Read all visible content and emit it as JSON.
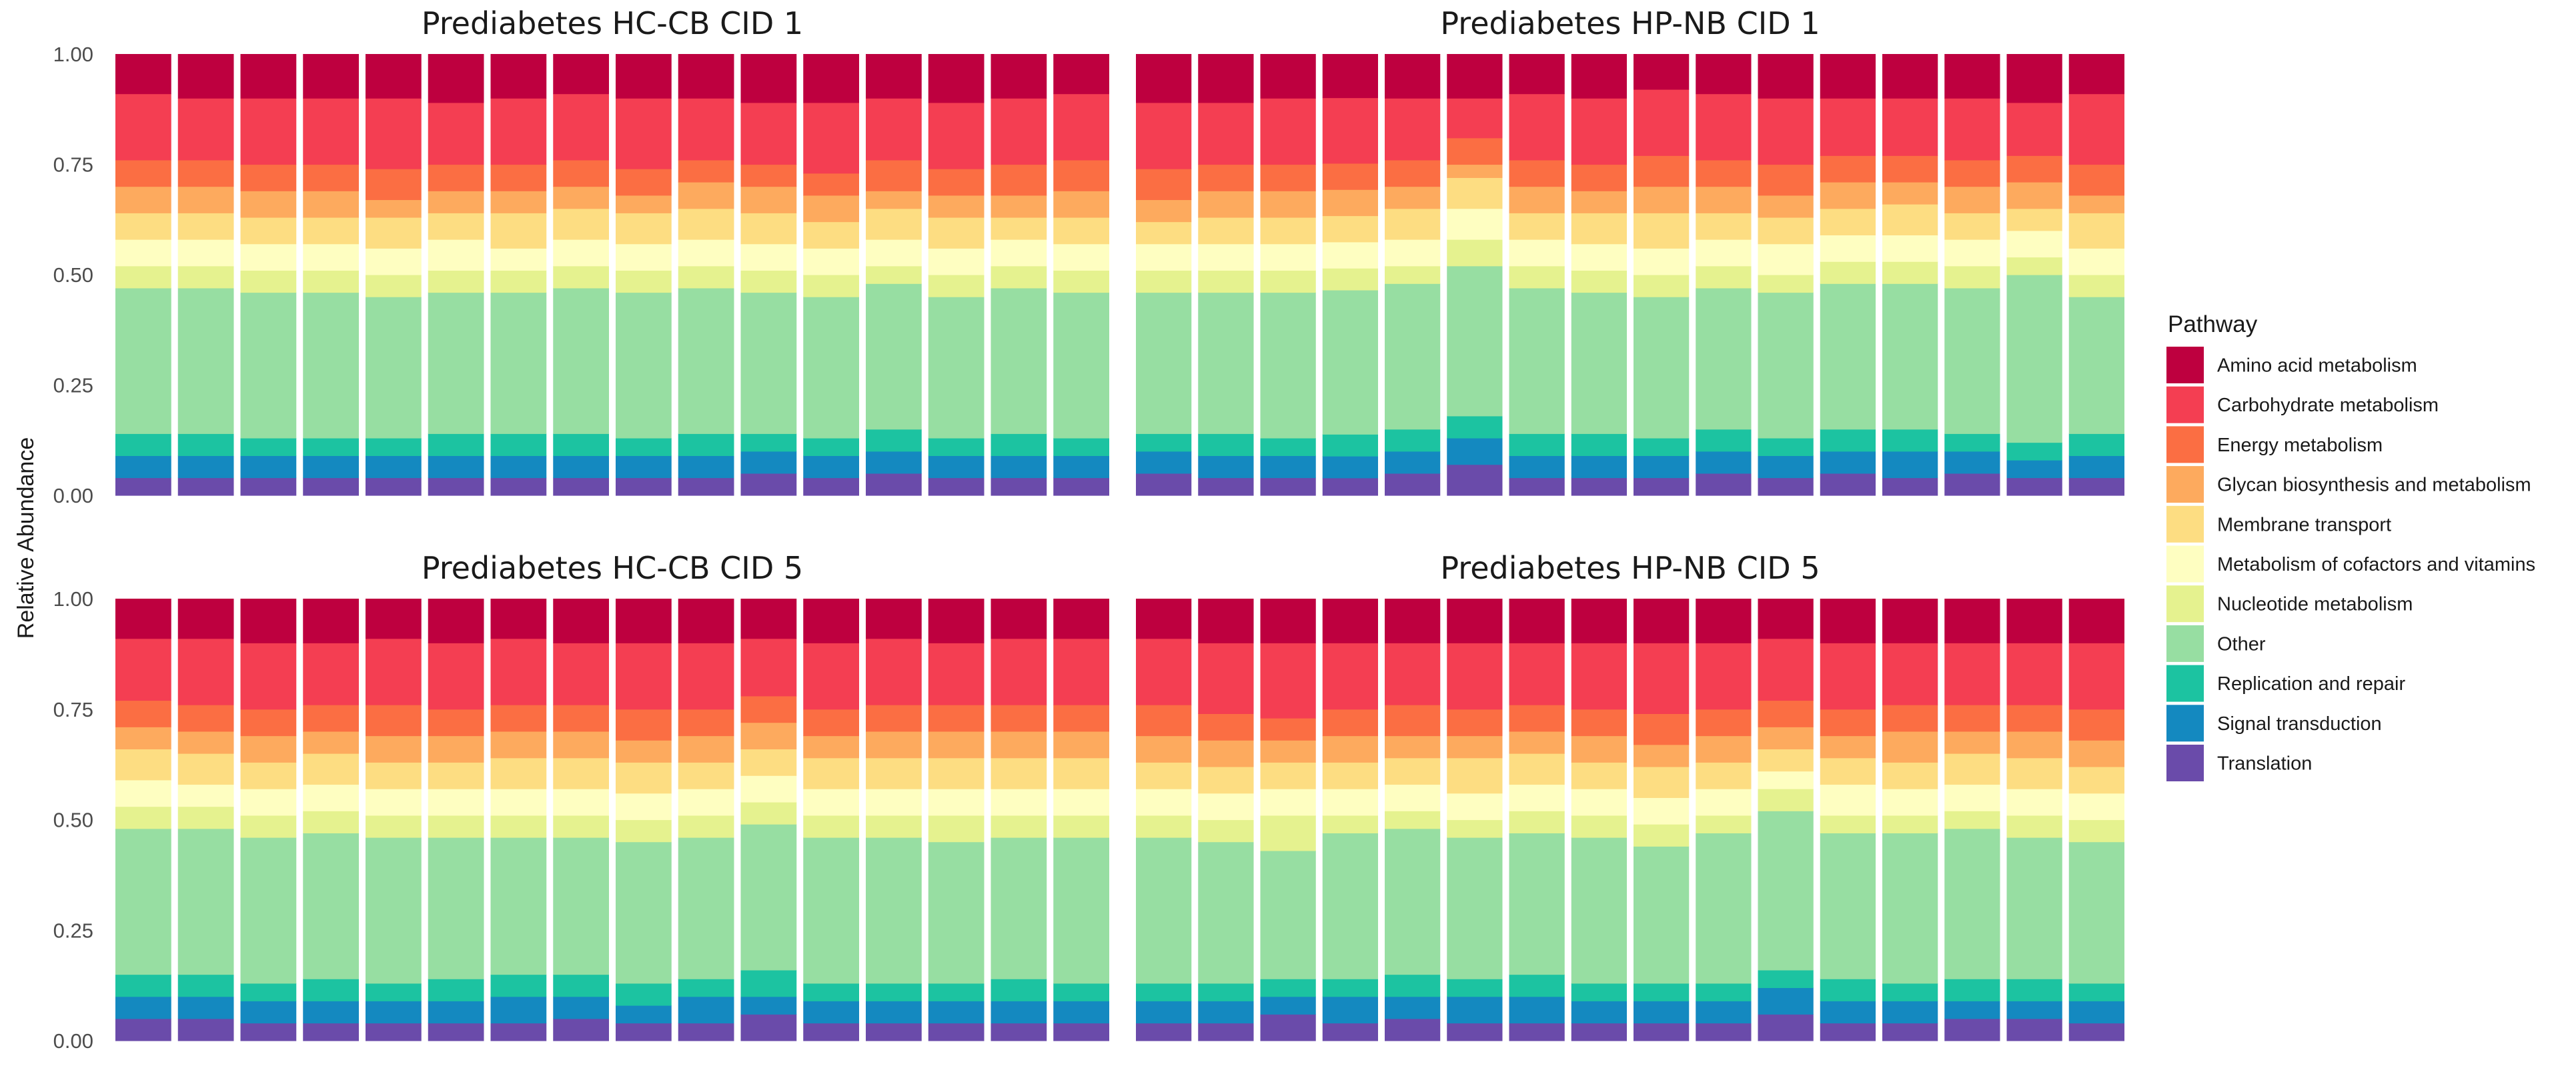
{
  "chart_data": {
    "type": "bar",
    "stacked": true,
    "ylabel": "Relative Abundance",
    "ylim": [
      0,
      1
    ],
    "yticks": [
      "0.00",
      "0.25",
      "0.50",
      "0.75",
      "1.00"
    ],
    "legend": {
      "title": "Pathway",
      "position": "right",
      "items": [
        {
          "name": "Amino acid metabolism",
          "color": "#BE003F"
        },
        {
          "name": "Carbohydrate metabolism",
          "color": "#F43E52"
        },
        {
          "name": "Energy metabolism",
          "color": "#FB6E43"
        },
        {
          "name": "Glycan biosynthesis and metabolism",
          "color": "#FDAA5E"
        },
        {
          "name": "Membrane transport",
          "color": "#FDDD82"
        },
        {
          "name": "Metabolism of cofactors and vitamins",
          "color": "#FEFEC1"
        },
        {
          "name": "Nucleotide metabolism",
          "color": "#E5F28F"
        },
        {
          "name": "Other",
          "color": "#97DEA2"
        },
        {
          "name": "Replication and repair",
          "color": "#1CC3A1"
        },
        {
          "name": "Signal transduction",
          "color": "#1489C0"
        },
        {
          "name": "Translation",
          "color": "#6A4BAA"
        }
      ]
    },
    "panels": [
      {
        "title": "Prediabetes HC-CB CID 1",
        "layer_order": "bottom-to-top: Translation, Signal transduction, Replication and repair, Other, Nucleotide metabolism, Metabolism of cofactors and vitamins, Membrane transport, Glycan biosynthesis and metabolism, Energy metabolism, Carbohydrate metabolism, Amino acid metabolism",
        "bars": [
          [
            0.04,
            0.05,
            0.05,
            0.33,
            0.05,
            0.06,
            0.06,
            0.06,
            0.06,
            0.15,
            0.09
          ],
          [
            0.04,
            0.05,
            0.05,
            0.33,
            0.05,
            0.06,
            0.06,
            0.06,
            0.06,
            0.14,
            0.1
          ],
          [
            0.04,
            0.05,
            0.04,
            0.33,
            0.05,
            0.06,
            0.06,
            0.06,
            0.06,
            0.15,
            0.1
          ],
          [
            0.04,
            0.05,
            0.04,
            0.33,
            0.05,
            0.06,
            0.06,
            0.06,
            0.06,
            0.15,
            0.1
          ],
          [
            0.04,
            0.05,
            0.04,
            0.32,
            0.05,
            0.06,
            0.07,
            0.04,
            0.07,
            0.16,
            0.1
          ],
          [
            0.04,
            0.05,
            0.05,
            0.32,
            0.05,
            0.07,
            0.06,
            0.05,
            0.06,
            0.14,
            0.11
          ],
          [
            0.04,
            0.05,
            0.05,
            0.32,
            0.05,
            0.05,
            0.08,
            0.05,
            0.06,
            0.15,
            0.1
          ],
          [
            0.04,
            0.05,
            0.05,
            0.33,
            0.05,
            0.06,
            0.07,
            0.05,
            0.06,
            0.15,
            0.09
          ],
          [
            0.04,
            0.05,
            0.04,
            0.33,
            0.05,
            0.06,
            0.07,
            0.04,
            0.06,
            0.16,
            0.1
          ],
          [
            0.04,
            0.05,
            0.05,
            0.33,
            0.05,
            0.06,
            0.07,
            0.06,
            0.05,
            0.14,
            0.1
          ],
          [
            0.05,
            0.05,
            0.04,
            0.32,
            0.05,
            0.06,
            0.07,
            0.06,
            0.05,
            0.14,
            0.11
          ],
          [
            0.04,
            0.05,
            0.04,
            0.32,
            0.05,
            0.06,
            0.06,
            0.06,
            0.05,
            0.16,
            0.11
          ],
          [
            0.05,
            0.05,
            0.05,
            0.33,
            0.04,
            0.06,
            0.07,
            0.04,
            0.07,
            0.14,
            0.1
          ],
          [
            0.04,
            0.05,
            0.04,
            0.32,
            0.05,
            0.06,
            0.07,
            0.05,
            0.06,
            0.15,
            0.11
          ],
          [
            0.04,
            0.05,
            0.05,
            0.33,
            0.05,
            0.06,
            0.05,
            0.05,
            0.07,
            0.15,
            0.1
          ],
          [
            0.04,
            0.05,
            0.04,
            0.33,
            0.05,
            0.06,
            0.06,
            0.06,
            0.07,
            0.15,
            0.09
          ]
        ]
      },
      {
        "title": "Prediabetes HP-NB CID 1",
        "layer_order": "bottom-to-top: Translation, Signal transduction, Replication and repair, Other, Nucleotide metabolism, Metabolism of cofactors and vitamins, Membrane transport, Glycan biosynthesis and metabolism, Energy metabolism, Carbohydrate metabolism, Amino acid metabolism",
        "bars": [
          [
            0.05,
            0.05,
            0.04,
            0.32,
            0.05,
            0.06,
            0.05,
            0.05,
            0.07,
            0.15,
            0.11
          ],
          [
            0.04,
            0.05,
            0.05,
            0.32,
            0.05,
            0.06,
            0.06,
            0.06,
            0.06,
            0.14,
            0.11
          ],
          [
            0.04,
            0.05,
            0.04,
            0.33,
            0.05,
            0.06,
            0.06,
            0.06,
            0.06,
            0.15,
            0.1
          ],
          [
            0.04,
            0.05,
            0.05,
            0.33,
            0.05,
            0.06,
            0.06,
            0.06,
            0.06,
            0.15,
            0.1
          ],
          [
            0.05,
            0.05,
            0.05,
            0.33,
            0.04,
            0.06,
            0.07,
            0.05,
            0.06,
            0.14,
            0.1
          ],
          [
            0.07,
            0.06,
            0.05,
            0.34,
            0.06,
            0.07,
            0.07,
            0.03,
            0.06,
            0.09,
            0.1
          ],
          [
            0.04,
            0.05,
            0.05,
            0.33,
            0.05,
            0.06,
            0.06,
            0.06,
            0.06,
            0.15,
            0.09
          ],
          [
            0.04,
            0.05,
            0.05,
            0.32,
            0.05,
            0.06,
            0.07,
            0.05,
            0.06,
            0.15,
            0.1
          ],
          [
            0.04,
            0.05,
            0.04,
            0.32,
            0.05,
            0.06,
            0.08,
            0.06,
            0.07,
            0.15,
            0.08
          ],
          [
            0.05,
            0.05,
            0.05,
            0.32,
            0.05,
            0.06,
            0.06,
            0.06,
            0.06,
            0.15,
            0.09
          ],
          [
            0.04,
            0.05,
            0.04,
            0.33,
            0.04,
            0.07,
            0.06,
            0.05,
            0.07,
            0.15,
            0.1
          ],
          [
            0.05,
            0.05,
            0.05,
            0.33,
            0.05,
            0.06,
            0.06,
            0.06,
            0.06,
            0.13,
            0.1
          ],
          [
            0.04,
            0.06,
            0.05,
            0.33,
            0.05,
            0.06,
            0.07,
            0.05,
            0.06,
            0.13,
            0.1
          ],
          [
            0.05,
            0.05,
            0.04,
            0.33,
            0.05,
            0.06,
            0.06,
            0.06,
            0.06,
            0.14,
            0.1
          ],
          [
            0.04,
            0.04,
            0.04,
            0.38,
            0.04,
            0.06,
            0.05,
            0.06,
            0.06,
            0.12,
            0.11
          ],
          [
            0.04,
            0.05,
            0.05,
            0.31,
            0.05,
            0.06,
            0.08,
            0.04,
            0.07,
            0.16,
            0.09
          ]
        ]
      },
      {
        "title": "Prediabetes HC-CB CID 5",
        "layer_order": "bottom-to-top: Translation, Signal transduction, Replication and repair, Other, Nucleotide metabolism, Metabolism of cofactors and vitamins, Membrane transport, Glycan biosynthesis and metabolism, Energy metabolism, Carbohydrate metabolism, Amino acid metabolism",
        "bars": [
          [
            0.05,
            0.05,
            0.05,
            0.33,
            0.05,
            0.06,
            0.07,
            0.05,
            0.06,
            0.14,
            0.09
          ],
          [
            0.05,
            0.05,
            0.05,
            0.33,
            0.05,
            0.05,
            0.07,
            0.05,
            0.06,
            0.15,
            0.09
          ],
          [
            0.04,
            0.05,
            0.04,
            0.33,
            0.05,
            0.06,
            0.06,
            0.06,
            0.06,
            0.15,
            0.1
          ],
          [
            0.04,
            0.05,
            0.05,
            0.33,
            0.05,
            0.06,
            0.07,
            0.05,
            0.06,
            0.14,
            0.1
          ],
          [
            0.04,
            0.05,
            0.04,
            0.33,
            0.05,
            0.06,
            0.06,
            0.06,
            0.07,
            0.15,
            0.09
          ],
          [
            0.04,
            0.05,
            0.05,
            0.32,
            0.05,
            0.06,
            0.06,
            0.06,
            0.06,
            0.15,
            0.1
          ],
          [
            0.04,
            0.06,
            0.05,
            0.31,
            0.05,
            0.06,
            0.07,
            0.06,
            0.06,
            0.15,
            0.09
          ],
          [
            0.05,
            0.05,
            0.05,
            0.31,
            0.05,
            0.06,
            0.07,
            0.06,
            0.06,
            0.14,
            0.1
          ],
          [
            0.04,
            0.04,
            0.05,
            0.32,
            0.05,
            0.06,
            0.07,
            0.05,
            0.07,
            0.15,
            0.1
          ],
          [
            0.04,
            0.06,
            0.04,
            0.32,
            0.05,
            0.06,
            0.06,
            0.06,
            0.06,
            0.15,
            0.1
          ],
          [
            0.06,
            0.04,
            0.06,
            0.33,
            0.05,
            0.06,
            0.06,
            0.06,
            0.06,
            0.13,
            0.09
          ],
          [
            0.04,
            0.05,
            0.04,
            0.33,
            0.05,
            0.06,
            0.07,
            0.05,
            0.06,
            0.15,
            0.1
          ],
          [
            0.04,
            0.05,
            0.04,
            0.33,
            0.05,
            0.06,
            0.07,
            0.06,
            0.06,
            0.15,
            0.09
          ],
          [
            0.04,
            0.05,
            0.04,
            0.32,
            0.06,
            0.06,
            0.07,
            0.06,
            0.06,
            0.14,
            0.1
          ],
          [
            0.04,
            0.05,
            0.05,
            0.32,
            0.05,
            0.06,
            0.07,
            0.06,
            0.06,
            0.15,
            0.09
          ],
          [
            0.04,
            0.05,
            0.04,
            0.33,
            0.05,
            0.06,
            0.07,
            0.06,
            0.06,
            0.15,
            0.09
          ]
        ]
      },
      {
        "title": "Prediabetes HP-NB CID 5",
        "layer_order": "bottom-to-top: Translation, Signal transduction, Replication and repair, Other, Nucleotide metabolism, Metabolism of cofactors and vitamins, Membrane transport, Glycan biosynthesis and metabolism, Energy metabolism, Carbohydrate metabolism, Amino acid metabolism",
        "bars": [
          [
            0.04,
            0.05,
            0.04,
            0.33,
            0.05,
            0.06,
            0.06,
            0.06,
            0.07,
            0.15,
            0.09
          ],
          [
            0.04,
            0.05,
            0.04,
            0.32,
            0.05,
            0.06,
            0.06,
            0.06,
            0.06,
            0.16,
            0.1
          ],
          [
            0.06,
            0.04,
            0.04,
            0.29,
            0.08,
            0.06,
            0.06,
            0.05,
            0.05,
            0.17,
            0.1
          ],
          [
            0.04,
            0.06,
            0.04,
            0.33,
            0.04,
            0.06,
            0.06,
            0.06,
            0.06,
            0.15,
            0.1
          ],
          [
            0.05,
            0.05,
            0.05,
            0.33,
            0.04,
            0.06,
            0.06,
            0.05,
            0.07,
            0.14,
            0.1
          ],
          [
            0.04,
            0.06,
            0.04,
            0.32,
            0.04,
            0.06,
            0.08,
            0.05,
            0.06,
            0.15,
            0.1
          ],
          [
            0.04,
            0.06,
            0.05,
            0.32,
            0.05,
            0.06,
            0.07,
            0.05,
            0.06,
            0.14,
            0.1
          ],
          [
            0.04,
            0.05,
            0.04,
            0.33,
            0.05,
            0.06,
            0.06,
            0.06,
            0.06,
            0.15,
            0.1
          ],
          [
            0.04,
            0.05,
            0.04,
            0.31,
            0.05,
            0.06,
            0.07,
            0.05,
            0.07,
            0.16,
            0.1
          ],
          [
            0.04,
            0.05,
            0.04,
            0.34,
            0.04,
            0.06,
            0.06,
            0.06,
            0.06,
            0.15,
            0.1
          ],
          [
            0.06,
            0.06,
            0.04,
            0.36,
            0.05,
            0.04,
            0.05,
            0.05,
            0.06,
            0.14,
            0.09
          ],
          [
            0.04,
            0.05,
            0.05,
            0.33,
            0.04,
            0.07,
            0.06,
            0.05,
            0.06,
            0.15,
            0.1
          ],
          [
            0.04,
            0.05,
            0.04,
            0.34,
            0.04,
            0.06,
            0.06,
            0.07,
            0.06,
            0.14,
            0.1
          ],
          [
            0.05,
            0.04,
            0.05,
            0.34,
            0.04,
            0.06,
            0.07,
            0.05,
            0.06,
            0.14,
            0.1
          ],
          [
            0.05,
            0.04,
            0.05,
            0.32,
            0.05,
            0.06,
            0.07,
            0.06,
            0.06,
            0.14,
            0.1
          ],
          [
            0.04,
            0.05,
            0.04,
            0.32,
            0.05,
            0.06,
            0.06,
            0.06,
            0.07,
            0.15,
            0.1
          ]
        ]
      }
    ]
  }
}
